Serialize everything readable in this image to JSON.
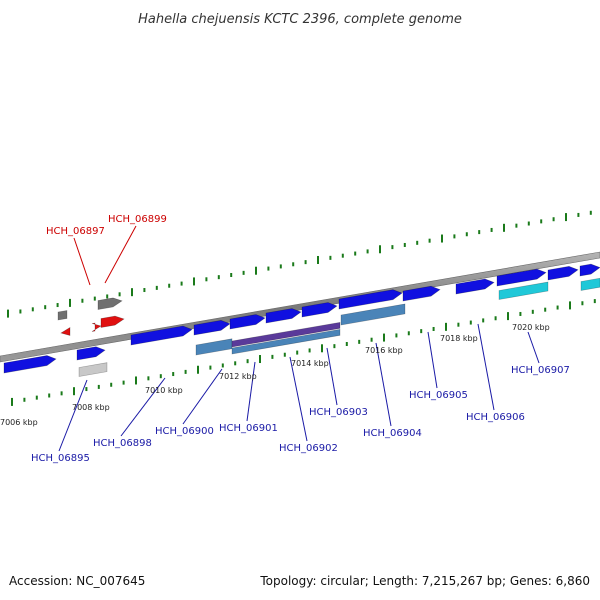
{
  "title": "Hahella chejuensis KCTC 2396, complete genome",
  "footer": {
    "accession": "Accession: NC_007645",
    "summary": "Topology: circular; Length: 7,215,267 bp; Genes: 6,860"
  },
  "colors": {
    "forward_gene": "#1010e0",
    "rna_gene": "#e01010",
    "pseudo_gene": "#707070",
    "cyan_feature": "#20c8d8",
    "steelblue_feature": "#4a84b8",
    "purple_feature": "#5a3a9a",
    "tick_green": "#1a7a1a",
    "backbone": "#8a8a8a"
  },
  "scale_labels": [
    "7006 kbp",
    "7008 kbp",
    "7010 kbp",
    "7012 kbp",
    "7014 kbp",
    "7016 kbp",
    "7018 kbp",
    "7020 kbp"
  ],
  "gene_labels_rna": [
    "HCH_06897",
    "HCH_06899"
  ],
  "gene_labels_protein": [
    "HCH_06895",
    "HCH_06898",
    "HCH_06900",
    "HCH_06901",
    "HCH_06902",
    "HCH_06903",
    "HCH_06904",
    "HCH_06905",
    "HCH_06906",
    "HCH_06907"
  ]
}
